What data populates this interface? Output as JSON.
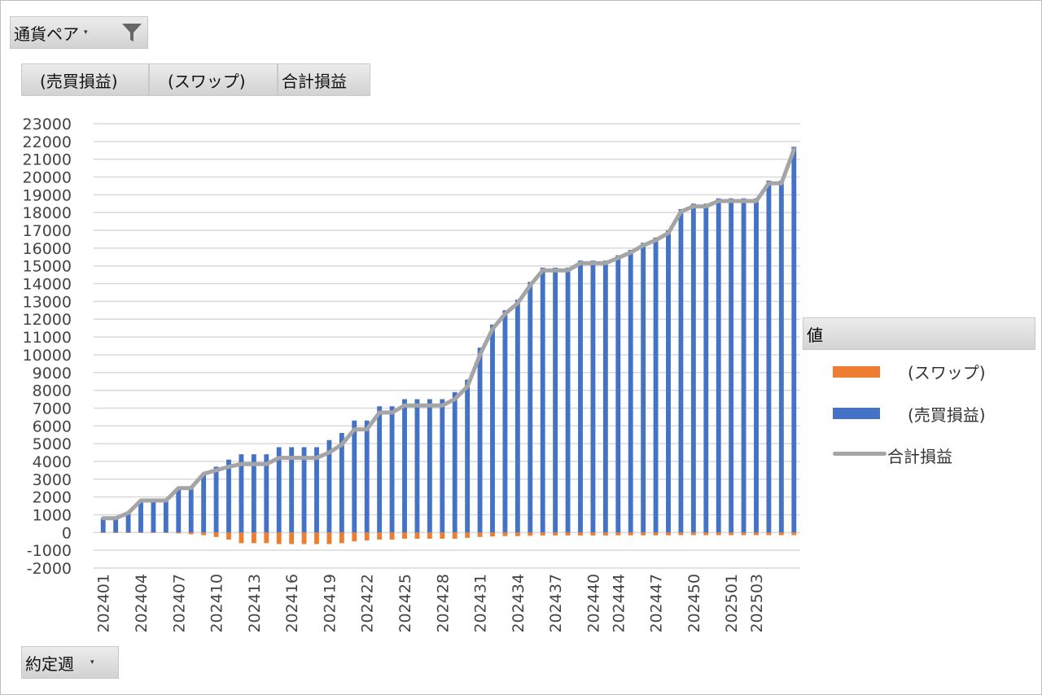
{
  "filter_field": {
    "label": "通貨ペア",
    "icon": "filter-icon"
  },
  "value_fields": [
    {
      "label": "(売買損益)"
    },
    {
      "label": "(スワップ)"
    },
    {
      "label": "合計損益"
    }
  ],
  "axis_field": {
    "label": "約定週"
  },
  "legend": {
    "title": "値",
    "items": [
      {
        "label": "(スワップ)",
        "color": "#ed7d31",
        "kind": "bar"
      },
      {
        "label": "(売買損益)",
        "color": "#4472c4",
        "kind": "bar"
      },
      {
        "label": "合計損益",
        "color": "#a5a5a5",
        "kind": "line"
      }
    ]
  },
  "chart_data": {
    "type": "bar",
    "ylim": [
      -2000,
      23000
    ],
    "ytick_step": 1000,
    "grid": true,
    "legend_position": "right",
    "categories": [
      "202401",
      "202402",
      "202403",
      "202404",
      "202405",
      "202406",
      "202407",
      "202408",
      "202409",
      "202410",
      "202411",
      "202412",
      "202413",
      "202414",
      "202415",
      "202416",
      "202417",
      "202418",
      "202419",
      "202420",
      "202421",
      "202422",
      "202423",
      "202424",
      "202425",
      "202426",
      "202427",
      "202428",
      "202429",
      "202430",
      "202431",
      "202432",
      "202433",
      "202434",
      "202435",
      "202436",
      "202437",
      "202438",
      "202439",
      "202440",
      "202441",
      "202444",
      "202445",
      "202446",
      "202447",
      "202448",
      "202449",
      "202450",
      "202451",
      "202452",
      "202501",
      "202502",
      "202503",
      "202504",
      "202505",
      "202506"
    ],
    "xtick_labels": [
      "202401",
      "202404",
      "202407",
      "202410",
      "202413",
      "202416",
      "202419",
      "202422",
      "202425",
      "202428",
      "202431",
      "202434",
      "202437",
      "202440",
      "202444",
      "202447",
      "202450",
      "202501",
      "202503"
    ],
    "series": [
      {
        "name": "(売買損益)",
        "color": "#4472c4",
        "type": "bar",
        "values": [
          800,
          800,
          1100,
          1800,
          1800,
          1800,
          2500,
          2500,
          3300,
          3700,
          4100,
          4400,
          4400,
          4400,
          4800,
          4800,
          4800,
          4800,
          5200,
          5600,
          6300,
          6300,
          7100,
          7100,
          7500,
          7500,
          7500,
          7500,
          7900,
          8600,
          10400,
          11700,
          12500,
          13100,
          14100,
          14900,
          14900,
          14900,
          15300,
          15300,
          15300,
          15600,
          15900,
          16300,
          16600,
          17000,
          18200,
          18500,
          18500,
          18800,
          18800,
          18800,
          18800,
          19800,
          19800,
          21700
        ]
      },
      {
        "name": "(スワップ)",
        "color": "#ed7d31",
        "type": "bar",
        "values": [
          0,
          0,
          0,
          0,
          0,
          -20,
          -50,
          -100,
          -150,
          -250,
          -400,
          -600,
          -600,
          -600,
          -650,
          -650,
          -650,
          -650,
          -650,
          -600,
          -500,
          -450,
          -400,
          -400,
          -350,
          -350,
          -350,
          -350,
          -350,
          -300,
          -250,
          -220,
          -200,
          -200,
          -180,
          -170,
          -170,
          -170,
          -170,
          -170,
          -170,
          -160,
          -160,
          -160,
          -160,
          -160,
          -150,
          -150,
          -150,
          -150,
          -150,
          -150,
          -150,
          -150,
          -150,
          -150
        ]
      },
      {
        "name": "合計損益",
        "color": "#a5a5a5",
        "type": "line",
        "values": [
          800,
          800,
          1100,
          1800,
          1800,
          1800,
          2500,
          2500,
          3300,
          3500,
          3700,
          3850,
          3850,
          3850,
          4200,
          4200,
          4200,
          4200,
          4500,
          4950,
          5800,
          5800,
          6750,
          6750,
          7150,
          7150,
          7150,
          7150,
          7500,
          8200,
          10000,
          11450,
          12300,
          12900,
          13900,
          14750,
          14750,
          14750,
          15150,
          15150,
          15150,
          15450,
          15750,
          16150,
          16450,
          16850,
          18050,
          18350,
          18350,
          18650,
          18650,
          18650,
          18650,
          19650,
          19650,
          21550
        ]
      }
    ]
  }
}
